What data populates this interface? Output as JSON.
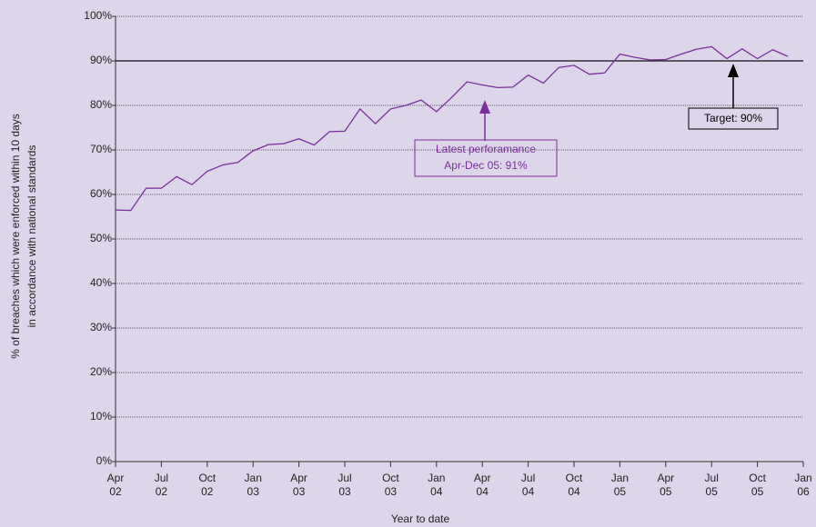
{
  "chart_data": {
    "type": "line",
    "xlabel": "Year to date",
    "ylabel": [
      "% of breaches which were enforced within 10 days",
      "in accordance with national standards"
    ],
    "x": [
      "2002-04",
      "2002-05",
      "2002-06",
      "2002-07",
      "2002-08",
      "2002-09",
      "2002-10",
      "2002-11",
      "2002-12",
      "2003-01",
      "2003-02",
      "2003-03",
      "2003-04",
      "2003-05",
      "2003-06",
      "2003-07",
      "2003-08",
      "2003-09",
      "2003-10",
      "2003-11",
      "2003-12",
      "2004-01",
      "2004-02",
      "2004-03",
      "2004-04",
      "2004-05",
      "2004-06",
      "2004-07",
      "2004-08",
      "2004-09",
      "2004-10",
      "2004-11",
      "2004-12",
      "2005-01",
      "2005-02",
      "2005-03",
      "2005-04",
      "2005-05",
      "2005-06",
      "2005-07",
      "2005-08",
      "2005-09",
      "2005-10",
      "2005-11",
      "2005-12"
    ],
    "series": [
      {
        "color": "#7a2f9c",
        "values": [
          56.5,
          56.4,
          61.4,
          61.4,
          64,
          62.2,
          65.2,
          66.6,
          67.2,
          69.8,
          71.2,
          71.4,
          72.5,
          71.1,
          74.1,
          74.2,
          79.2,
          75.9,
          79.2,
          80,
          81.2,
          78.6,
          81.8,
          85.3,
          84.6,
          84,
          84.1,
          86.8,
          85,
          88.5,
          89,
          87,
          87.3,
          91.5,
          90.8,
          90.2,
          90.3,
          91.5,
          92.6,
          93.2,
          90.5,
          92.7,
          90.5,
          92.5,
          91
        ]
      }
    ],
    "target": 90,
    "xlim": [
      "2002-04",
      "2006-01"
    ],
    "xticks": [
      {
        "value": "2002-04",
        "label": [
          "Apr",
          "02"
        ]
      },
      {
        "value": "2002-07",
        "label": [
          "Jul",
          "02"
        ]
      },
      {
        "value": "2002-10",
        "label": [
          "Oct",
          "02"
        ]
      },
      {
        "value": "2003-01",
        "label": [
          "Jan",
          "03"
        ]
      },
      {
        "value": "2003-04",
        "label": [
          "Apr",
          "03"
        ]
      },
      {
        "value": "2003-07",
        "label": [
          "Jul",
          "03"
        ]
      },
      {
        "value": "2003-10",
        "label": [
          "Oct",
          "03"
        ]
      },
      {
        "value": "2004-01",
        "label": [
          "Jan",
          "04"
        ]
      },
      {
        "value": "2004-04",
        "label": [
          "Apr",
          "04"
        ]
      },
      {
        "value": "2004-07",
        "label": [
          "Jul",
          "04"
        ]
      },
      {
        "value": "2004-10",
        "label": [
          "Oct",
          "04"
        ]
      },
      {
        "value": "2005-01",
        "label": [
          "Jan",
          "05"
        ]
      },
      {
        "value": "2005-04",
        "label": [
          "Apr",
          "05"
        ]
      },
      {
        "value": "2005-07",
        "label": [
          "Jul",
          "05"
        ]
      },
      {
        "value": "2005-10",
        "label": [
          "Oct",
          "05"
        ]
      },
      {
        "value": "2006-01",
        "label": [
          "Jan",
          "06"
        ]
      }
    ],
    "ylim": [
      0,
      100
    ],
    "yticks": [
      {
        "value": 0,
        "label": "0%"
      },
      {
        "value": 10,
        "label": "10%"
      },
      {
        "value": 20,
        "label": "20%"
      },
      {
        "value": 30,
        "label": "30%"
      },
      {
        "value": 40,
        "label": "40%"
      },
      {
        "value": 50,
        "label": "50%"
      },
      {
        "value": 60,
        "label": "60%"
      },
      {
        "value": 70,
        "label": "70%"
      },
      {
        "value": 80,
        "label": "80%"
      },
      {
        "value": 90,
        "label": "90%"
      },
      {
        "value": 100,
        "label": "100%"
      }
    ],
    "grid": true,
    "annotations": [
      {
        "text": [
          "Latest perforamance",
          "Apr-Dec 05: 91%"
        ],
        "color": "#7a2f9c"
      },
      {
        "text": [
          "Target: 90%"
        ],
        "color": "#000000"
      }
    ]
  }
}
